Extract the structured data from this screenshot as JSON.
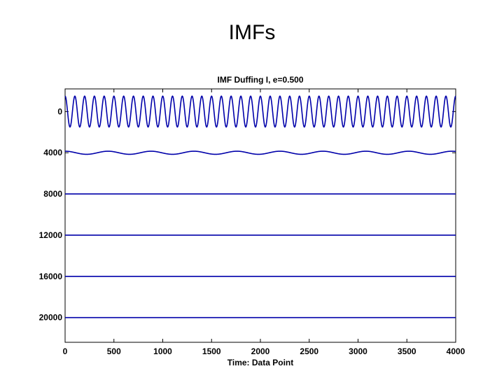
{
  "slide": {
    "title": "IMFs"
  },
  "chart_data": {
    "type": "line",
    "title": "IMF Duffing I, e=0.500",
    "xlabel": "Time: Data Point",
    "ylabel": "",
    "xlim": [
      0,
      4000
    ],
    "ylim": [
      -2200,
      22400
    ],
    "y_reversed": true,
    "x_ticks": [
      0,
      500,
      1000,
      1500,
      2000,
      2500,
      3000,
      3500,
      4000
    ],
    "y_ticks": [
      0,
      4000,
      8000,
      12000,
      16000,
      20000
    ],
    "y_tick_labels": [
      "0",
      "4000",
      "8000",
      "12000",
      "16000",
      "20000"
    ],
    "line_color": "#0000aa",
    "grid": false,
    "series": [
      {
        "offset": 0,
        "amplitude": 1500,
        "period": 100,
        "phase": 0
      },
      {
        "offset": 4000,
        "amplitude": 150,
        "period": 440,
        "phase": 0
      },
      {
        "offset": 8000,
        "amplitude": 0,
        "period": 0,
        "phase": 0
      },
      {
        "offset": 12000,
        "amplitude": 0,
        "period": 0,
        "phase": 0
      },
      {
        "offset": 16000,
        "amplitude": 0,
        "period": 0,
        "phase": 0
      },
      {
        "offset": 20000,
        "amplitude": 0,
        "period": 0,
        "phase": 0
      }
    ]
  }
}
